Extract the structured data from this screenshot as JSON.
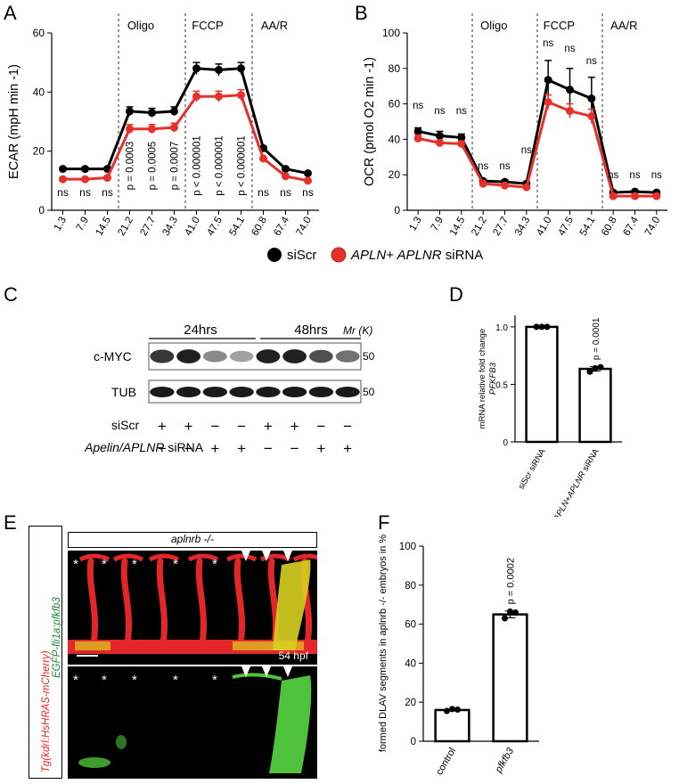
{
  "panels": {
    "A": "A",
    "B": "B",
    "C": "C",
    "D": "D",
    "E": "E",
    "F": "F"
  },
  "legend": {
    "series1": "siScr",
    "series2_italic": "APLN+ APLNR",
    "series2_rest": " siRNA"
  },
  "colors": {
    "siScr": "#000000",
    "siRNA": "#e8302a",
    "green": "#4ec23a",
    "red": "#e3262a"
  },
  "chart_data": [
    {
      "id": "A",
      "type": "line",
      "ylabel": "ECAR (mpH min -1)",
      "ylim": [
        0,
        60
      ],
      "yticks": [
        0,
        20,
        40,
        60
      ],
      "x": [
        "1.3",
        "7.9",
        "14.5",
        "21.2",
        "27.7",
        "34.3",
        "41.0",
        "47.5",
        "54.1",
        "60.8",
        "67.4",
        "74.0"
      ],
      "phases": [
        "Oligo",
        "FCCP",
        "AA/R"
      ],
      "series": [
        {
          "name": "siScr",
          "values": [
            14,
            14,
            14,
            33.5,
            33,
            33.5,
            48,
            47.5,
            48,
            21,
            14,
            12.5
          ],
          "err": [
            0.5,
            0.5,
            0.5,
            1.5,
            1.5,
            1.5,
            2,
            2,
            2,
            0.5,
            0.5,
            0.5
          ]
        },
        {
          "name": "APLN+ APLNR siRNA",
          "values": [
            10.5,
            10.5,
            11,
            27.5,
            27.5,
            28,
            38.5,
            38.5,
            39,
            17.5,
            11.5,
            10
          ],
          "err": [
            0.5,
            0.5,
            0.5,
            1.5,
            1.5,
            1.5,
            1.8,
            1.8,
            1.8,
            0.5,
            0.5,
            0.5
          ]
        }
      ],
      "annotations": [
        "ns",
        "ns",
        "ns",
        "p = 0.0003",
        "p = 0.0005",
        "p = 0.0007",
        "p < 0.000001",
        "p < 0.000001",
        "p < 0.000001",
        "ns",
        "ns",
        "ns"
      ]
    },
    {
      "id": "B",
      "type": "line",
      "ylabel": "OCR (pmol O2 min -1)",
      "ylim": [
        0,
        100
      ],
      "yticks": [
        0,
        20,
        40,
        60,
        80,
        100
      ],
      "x": [
        "1.3",
        "7.9",
        "14.5",
        "21.2",
        "27.7",
        "34.3",
        "41.0",
        "47.5",
        "54.1",
        "60.8",
        "67.4",
        "74.0"
      ],
      "phases": [
        "Oligo",
        "FCCP",
        "AA/R"
      ],
      "series": [
        {
          "name": "siScr",
          "values": [
            44.5,
            42,
            41,
            16.5,
            16,
            15,
            73.5,
            68,
            63,
            10,
            10.5,
            10
          ],
          "err": [
            2,
            2.5,
            2,
            1,
            1,
            1,
            11,
            12,
            12,
            1,
            0.5,
            0.5
          ]
        },
        {
          "name": "APLN+ APLNR siRNA",
          "values": [
            40.5,
            38,
            37.5,
            15,
            14,
            13,
            61,
            56,
            53,
            8,
            8,
            8
          ],
          "err": [
            2,
            1.5,
            1.5,
            1,
            1,
            1,
            4,
            4,
            4,
            0.5,
            0.5,
            0.5
          ]
        }
      ],
      "annotations": [
        "ns",
        "ns",
        "ns",
        "ns",
        "ns",
        "ns",
        "ns",
        "ns",
        "ns",
        "ns",
        "ns",
        "ns"
      ]
    },
    {
      "id": "D",
      "type": "bar",
      "ylabel": "mRNA relative fold change",
      "ylabel_gene": "PFKFB3",
      "ylim": [
        0,
        1.1
      ],
      "yticks": [
        "0",
        "0.5",
        "1.0"
      ],
      "categories": [
        "siScr siRNA",
        "APLN+APLNR siRNA"
      ],
      "values": [
        1.0,
        0.635
      ],
      "points": [
        [
          1.0,
          1.0,
          1.0
        ],
        [
          0.61,
          0.64,
          0.65
        ]
      ],
      "annotation": "p = 0.0001"
    },
    {
      "id": "F",
      "type": "bar",
      "ylabel": "formed DLAV segments in aplnrb -/- embryos in %",
      "ylim": [
        0,
        100
      ],
      "yticks": [
        "0",
        "20",
        "40",
        "60",
        "80",
        "100"
      ],
      "categories": [
        "control",
        "pfkfb3"
      ],
      "values": [
        16,
        65
      ],
      "points": [
        [
          15.5,
          16.5,
          16.2
        ],
        [
          63,
          66.5,
          66
        ]
      ],
      "annotation": "p = 0.0002"
    }
  ],
  "blot": {
    "time1": "24hrs",
    "time2": "48hrs",
    "mr": "Mr (K)",
    "rows": [
      {
        "label": "c-MYC",
        "size": "50"
      },
      {
        "label": "TUB",
        "size": "50"
      }
    ],
    "siScr_label": "siScr",
    "siRNA_label_italic": "Apelin/APLNR",
    "siRNA_label_rest": " siRNA",
    "siScr_signs": [
      "+",
      "+",
      "−",
      "−",
      "+",
      "+",
      "−",
      "−"
    ],
    "siRNA_signs": [
      "−",
      "−",
      "+",
      "+",
      "−",
      "−",
      "+",
      "+"
    ],
    "myc_intensity": [
      0.85,
      0.95,
      0.5,
      0.4,
      0.95,
      0.95,
      0.75,
      0.6
    ]
  },
  "zebrafish": {
    "genotype": "aplnrb -/-",
    "side_label_red": "Tg(kdrl:HsHRAS-mCherry)",
    "side_label_green": "EGFP-fli1a:pfkfb3",
    "stage": "54 hpf",
    "asterisk": "*"
  }
}
